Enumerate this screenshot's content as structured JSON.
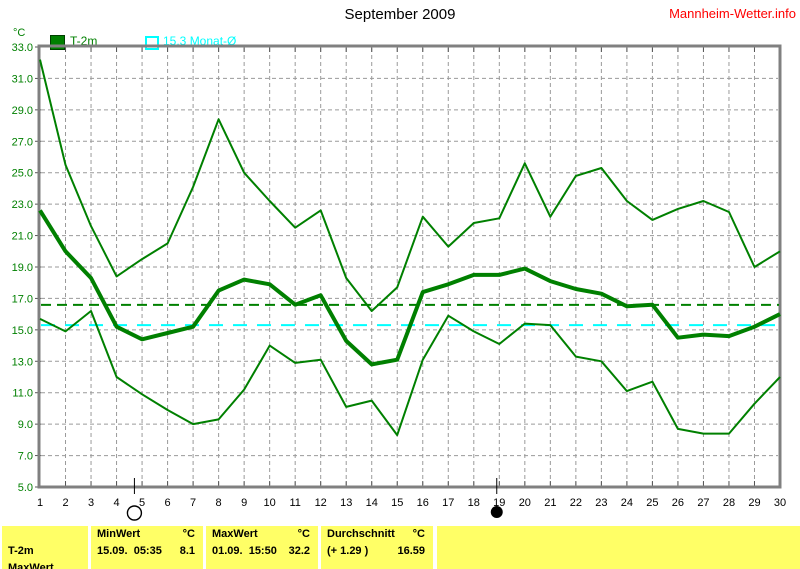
{
  "header": {
    "title": "September 2009",
    "site": "Mannheim-Wetter.info"
  },
  "y_axis_unit": "°C",
  "legend": {
    "series1_label": "T-2m",
    "series2_label": "15.3 Monat-Ø"
  },
  "colors": {
    "line_green": "#008000",
    "month_avg_cyan": "#00ffff",
    "site_red": "#ff0000",
    "grid_gray": "#9a9a9a",
    "axis_gray": "#808080",
    "table_yellow": "#ffff66"
  },
  "chart_data": {
    "type": "line",
    "title": "September 2009",
    "ylabel": "°C",
    "xlim": [
      1,
      30
    ],
    "ylim": [
      5,
      33
    ],
    "ytick_step": 2,
    "x_ticks": [
      1,
      2,
      3,
      4,
      5,
      6,
      7,
      8,
      9,
      10,
      11,
      12,
      13,
      14,
      15,
      16,
      17,
      18,
      19,
      20,
      21,
      22,
      23,
      24,
      25,
      26,
      27,
      28,
      29,
      30
    ],
    "grid": true,
    "series": [
      {
        "role": "daily-max",
        "width": 2,
        "values": [
          32.2,
          25.5,
          21.6,
          18.4,
          19.5,
          20.5,
          24.1,
          28.4,
          25.0,
          23.2,
          21.5,
          22.6,
          18.3,
          16.2,
          17.7,
          22.2,
          20.3,
          21.8,
          22.1,
          25.6,
          22.2,
          24.8,
          25.3,
          23.2,
          22.0,
          22.7,
          23.2,
          22.5,
          19.0,
          20.0
        ]
      },
      {
        "role": "daily-min",
        "width": 2,
        "values": [
          15.7,
          14.9,
          16.2,
          12.0,
          10.9,
          9.9,
          9.0,
          9.3,
          11.2,
          14.0,
          12.9,
          13.1,
          10.1,
          10.5,
          8.3,
          13.1,
          15.9,
          14.9,
          14.1,
          15.4,
          15.3,
          13.3,
          13.0,
          11.1,
          11.7,
          8.7,
          8.4,
          8.4,
          10.3,
          12.0
        ]
      },
      {
        "role": "daily-mean",
        "width": 4,
        "values": [
          22.6,
          20.0,
          18.3,
          15.2,
          14.4,
          14.8,
          15.2,
          17.5,
          18.2,
          17.9,
          16.6,
          17.2,
          14.3,
          12.8,
          13.1,
          17.4,
          17.9,
          18.5,
          18.5,
          18.9,
          18.1,
          17.6,
          17.3,
          16.5,
          16.6,
          14.5,
          14.7,
          14.6,
          15.2,
          16.0
        ]
      }
    ],
    "reference_lines": [
      {
        "role": "month-average",
        "value": 15.3,
        "color": "#00ffff",
        "dash": "14 10"
      },
      {
        "role": "period-average",
        "value": 16.59,
        "color": "#008000",
        "dash": "10 6"
      }
    ],
    "moon_markers": [
      {
        "day": 4.7,
        "phase": "full-moon"
      },
      {
        "day": 18.9,
        "phase": "new-moon"
      }
    ]
  },
  "table": {
    "row_label": "T-2m",
    "cut_row_label": "MaxWert",
    "groups": [
      {
        "header": "MinWert",
        "unit": "°C",
        "value_left": "15.09.  05:35",
        "value_right": "8.1"
      },
      {
        "header": "MaxWert",
        "unit": "°C",
        "value_left": "01.09.  15:50",
        "value_right": "32.2"
      },
      {
        "header": "Durchschnitt",
        "unit": "°C",
        "value_left": "(+ 1.29 )",
        "value_right": "16.59"
      }
    ]
  }
}
